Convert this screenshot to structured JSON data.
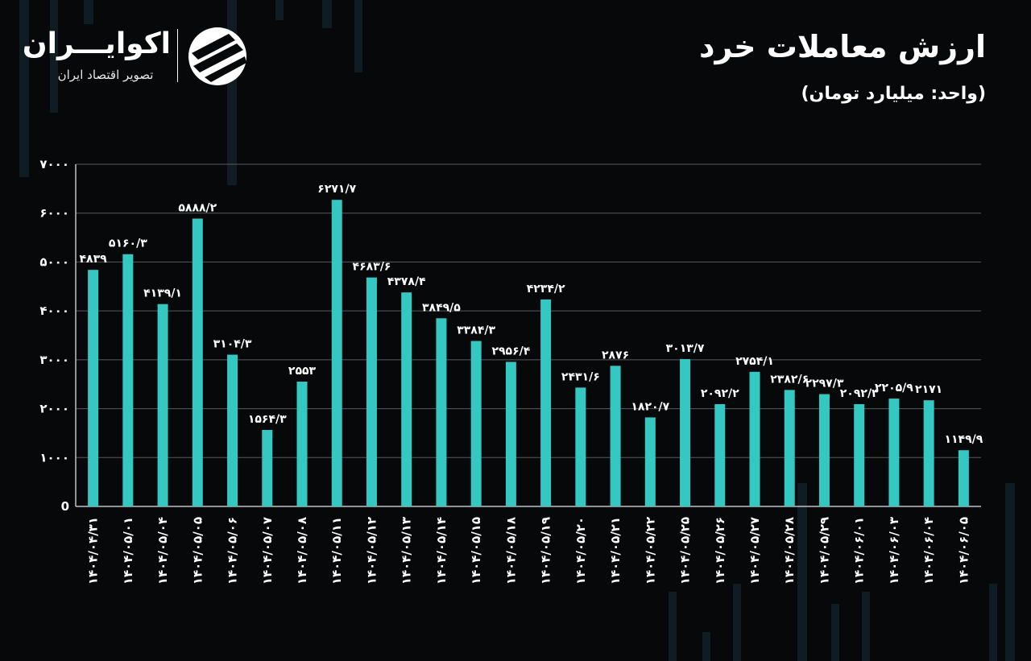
{
  "header": {
    "title": "ارزش معاملات خرد",
    "unit": "(واحد: میلیارد تومان)"
  },
  "brand": {
    "name": "اکوایـــران",
    "tagline": "تصویر اقتصاد ایران"
  },
  "colors": {
    "bar": "#35c7c1",
    "background": "#06080a",
    "text": "#ffffff"
  },
  "chart_data": {
    "type": "bar",
    "title": "ارزش معاملات خرد",
    "subtitle": "(واحد: میلیارد تومان)",
    "ylim": [
      0,
      7000
    ],
    "yticks": [
      {
        "v": 0,
        "label": "0"
      },
      {
        "v": 1000,
        "label": "۱۰۰۰"
      },
      {
        "v": 2000,
        "label": "۲۰۰۰"
      },
      {
        "v": 3000,
        "label": "۳۰۰۰"
      },
      {
        "v": 4000,
        "label": "۴۰۰۰"
      },
      {
        "v": 5000,
        "label": "۵۰۰۰"
      },
      {
        "v": 6000,
        "label": "۶۰۰۰"
      },
      {
        "v": 7000,
        "label": "۷۰۰۰"
      }
    ],
    "grid": true,
    "categories": [
      "۱۴۰۴/۰۴/۳۱",
      "۱۴۰۴/۰۵/۰۱",
      "۱۴۰۴/۰۵/۰۴",
      "۱۴۰۴/۰۵/۰۵",
      "۱۴۰۴/۰۵/۰۶",
      "۱۴۰۴/۰۵/۰۷",
      "۱۴۰۴/۰۵/۰۸",
      "۱۴۰۴/۰۵/۱۱",
      "۱۴۰۴/۰۵/۱۲",
      "۱۴۰۴/۰۵/۱۳",
      "۱۴۰۴/۰۵/۱۴",
      "۱۴۰۴/۰۵/۱۵",
      "۱۴۰۴/۰۵/۱۸",
      "۱۴۰۴/۰۵/۱۹",
      "۱۴۰۴/۰۵/۲۰",
      "۱۴۰۴/۰۵/۲۱",
      "۱۴۰۴/۰۵/۲۲",
      "۱۴۰۴/۰۵/۲۵",
      "۱۴۰۴/۰۵/۲۶",
      "۱۴۰۴/۰۵/۲۷",
      "۱۴۰۴/۰۵/۲۸",
      "۱۴۰۴/۰۵/۲۹",
      "۱۴۰۴/۰۶/۰۱",
      "۱۴۰۴/۰۶/۰۳",
      "۱۴۰۴/۰۶/۰۴",
      "۱۴۰۴/۰۶/۰۵"
    ],
    "values": [
      4839,
      5160.3,
      4139.1,
      5888.2,
      3104.3,
      1564.3,
      2553,
      6271.7,
      4683.6,
      4378.4,
      3849.5,
      3384.3,
      2956.4,
      4234.2,
      2431.6,
      2876,
      1820.7,
      3013.7,
      2092.2,
      2754.1,
      2382.6,
      2297.3,
      2092.3,
      2205.9,
      2171,
      1149.9
    ],
    "value_labels": [
      "۴۸۳۹",
      "۵۱۶۰/۳",
      "۴۱۳۹/۱",
      "۵۸۸۸/۲",
      "۳۱۰۴/۳",
      "۱۵۶۴/۳",
      "۲۵۵۳",
      "۶۲۷۱/۷",
      "۴۶۸۳/۶",
      "۴۳۷۸/۴",
      "۳۸۴۹/۵",
      "۳۳۸۴/۳",
      "۲۹۵۶/۴",
      "۴۲۳۴/۲",
      "۲۴۳۱/۶",
      "۲۸۷۶",
      "۱۸۲۰/۷",
      "۳۰۱۳/۷",
      "۲۰۹۲/۲",
      "۲۷۵۴/۱",
      "۲۳۸۲/۶",
      "۲۲۹۷/۳",
      "۲۰۹۲/۳",
      "۲۲۰۵/۹",
      "۲۱۷۱",
      "۱۱۴۹/۹"
    ]
  }
}
